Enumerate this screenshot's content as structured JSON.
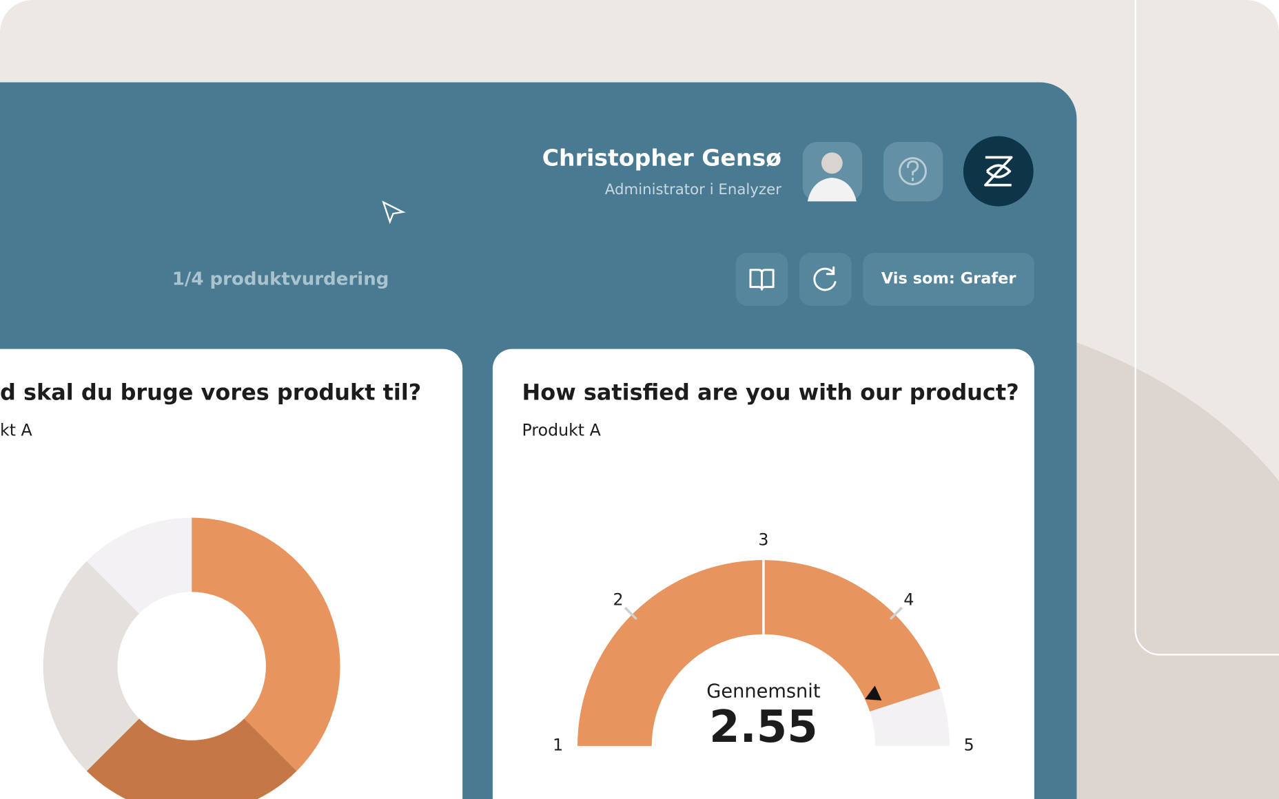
{
  "header": {
    "user_name": "Christopher Gensø",
    "user_role": "Administrator i Enalyzer"
  },
  "toolbar": {
    "progress": "1/4 produktvurdering",
    "view_button": "Vis som: Grafer"
  },
  "chart_data": [
    {
      "type": "pie",
      "title": "d skal du bruge vores produkt til?",
      "subtitle": "kt A",
      "values": [
        37.5,
        25,
        25,
        12.5
      ],
      "colors": [
        "#e8945f",
        "#c57745",
        "#e4e0db",
        "#f3f1f4"
      ],
      "hole": 0.5
    },
    {
      "type": "gauge",
      "title": "How satisfied are you with our product?",
      "subtitle": "Produkt A",
      "label": "Gennemsnit",
      "value": 2.55,
      "xlim": [
        1,
        5
      ],
      "xticks": [
        1,
        2,
        3,
        4,
        5
      ],
      "fill_to": 4.6,
      "pointer": 4.45,
      "color": "#e8945f",
      "track_color": "#f3f1f4"
    }
  ]
}
